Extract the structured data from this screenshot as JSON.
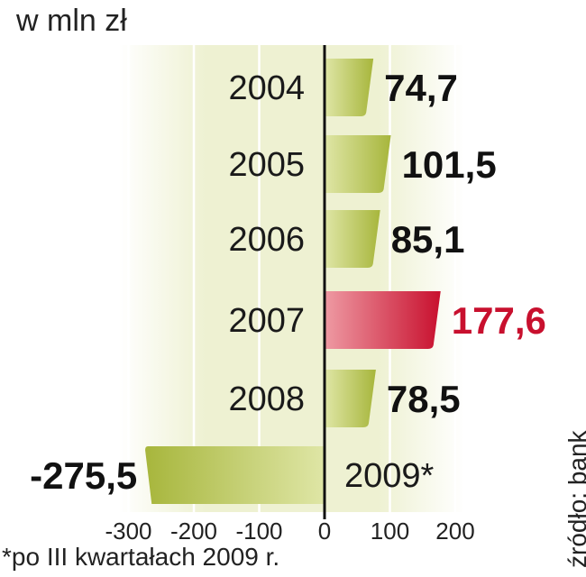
{
  "unit_label": "w mln zł",
  "footnote": "*po III kwartałach 2009 r.",
  "source": "źródło: bank",
  "colors": {
    "bar_green": "#a7b63c",
    "bar_green_light": "#dfe6a6",
    "bar_highlight": "#c8102e",
    "bar_highlight_light": "#ee9aa3",
    "highlight_text": "#c8102e",
    "panel_bg": "#eef1d2",
    "zero_line": "#111111"
  },
  "chart_data": {
    "type": "bar",
    "orientation": "horizontal",
    "categories": [
      "2004",
      "2005",
      "2006",
      "2007",
      "2008",
      "2009*"
    ],
    "values": [
      74.7,
      101.5,
      85.1,
      177.6,
      78.5,
      -275.5
    ],
    "value_labels": [
      "74,7",
      "101,5",
      "85,1",
      "177,6",
      "78,5",
      "-275,5"
    ],
    "highlight_index": 3,
    "xlim": [
      -300,
      200
    ],
    "xticks": [
      -300,
      -200,
      -100,
      0,
      100,
      200
    ],
    "xtick_labels": [
      "-300",
      "-200",
      "-100",
      "0",
      "100",
      "200"
    ],
    "grid": true
  }
}
